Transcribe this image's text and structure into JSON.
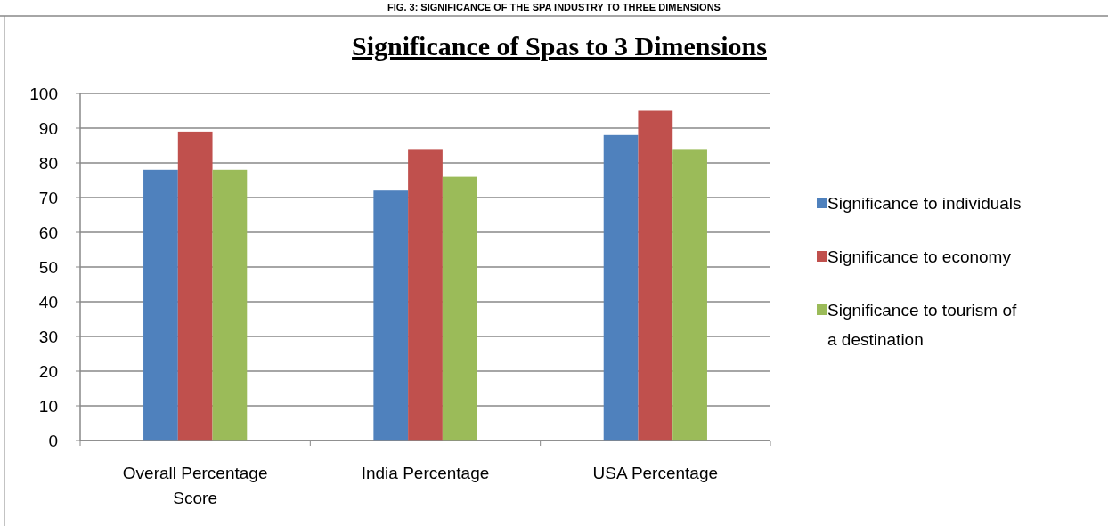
{
  "chart_data": {
    "type": "bar",
    "title": "Significance of Spas to 3 Dimensions",
    "annotations": [
      "FIG. 3: SIGNIFICANCE OF THE SPA INDUSTRY TO THREE DIMENSIONS"
    ],
    "categories": [
      "Overall Percentage Score",
      "India Percentage",
      "USA Percentage"
    ],
    "series": [
      {
        "name": "Significance to individuals",
        "color": "#4f81bd",
        "values": [
          78,
          72,
          88
        ]
      },
      {
        "name": "Significance to economy",
        "color": "#c0504d",
        "values": [
          89,
          84,
          95
        ]
      },
      {
        "name": "Significance to tourism of a destination",
        "color": "#9bbb59",
        "values": [
          78,
          76,
          84
        ]
      }
    ],
    "ylim": [
      0,
      100
    ],
    "yticks": [
      0,
      10,
      20,
      30,
      40,
      50,
      60,
      70,
      80,
      90,
      100
    ],
    "grid": "y",
    "legend": "right"
  }
}
